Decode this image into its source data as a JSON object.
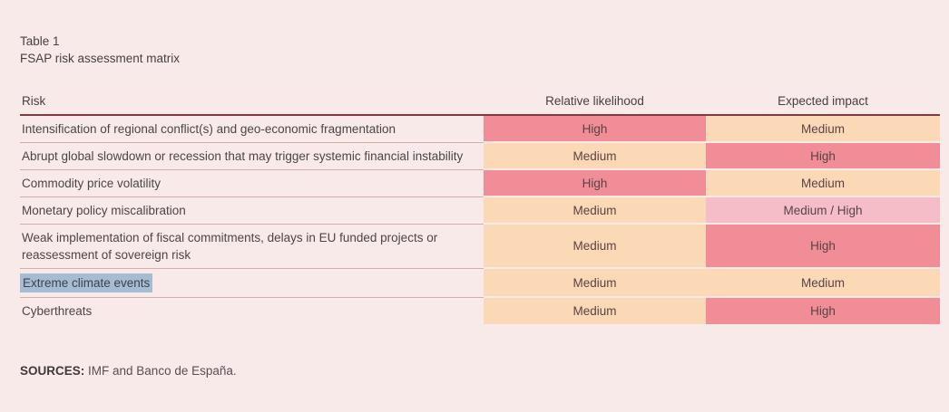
{
  "title": {
    "label": "Table 1",
    "subtitle": "FSAP risk assessment matrix"
  },
  "table": {
    "headers": {
      "risk": "Risk",
      "likelihood": "Relative likelihood",
      "impact": "Expected impact"
    },
    "rows": [
      {
        "risk": "Intensification of regional conflict(s) and geo-economic fragmentation",
        "likelihood": {
          "label": "High",
          "level": "high"
        },
        "impact": {
          "label": "Medium",
          "level": "medium"
        },
        "highlighted": false
      },
      {
        "risk": "Abrupt global slowdown or recession that may trigger systemic financial instability",
        "likelihood": {
          "label": "Medium",
          "level": "medium"
        },
        "impact": {
          "label": "High",
          "level": "high"
        },
        "highlighted": false
      },
      {
        "risk": "Commodity price volatility",
        "likelihood": {
          "label": "High",
          "level": "high"
        },
        "impact": {
          "label": "Medium",
          "level": "medium"
        },
        "highlighted": false
      },
      {
        "risk": "Monetary policy miscalibration",
        "likelihood": {
          "label": "Medium",
          "level": "medium"
        },
        "impact": {
          "label": "Medium / High",
          "level": "medium_high"
        },
        "highlighted": false
      },
      {
        "risk": "Weak implementation of fiscal commitments, delays in EU funded projects or reassessment of sovereign risk",
        "likelihood": {
          "label": "Medium",
          "level": "medium"
        },
        "impact": {
          "label": "High",
          "level": "high"
        },
        "highlighted": false
      },
      {
        "risk": "Extreme climate events",
        "likelihood": {
          "label": "Medium",
          "level": "medium"
        },
        "impact": {
          "label": "Medium",
          "level": "medium"
        },
        "highlighted": true
      },
      {
        "risk": "Cyberthreats",
        "likelihood": {
          "label": "Medium",
          "level": "medium"
        },
        "impact": {
          "label": "High",
          "level": "high"
        },
        "highlighted": false
      }
    ]
  },
  "footer": {
    "sources_label": "SOURCES:",
    "sources_text": "IMF and Banco de España."
  },
  "colors": {
    "background": "#f7eae9",
    "high": "#f08d96",
    "medium": "#fbd8b6",
    "medium_high": "#f5bdc7",
    "header_line": "#7d3c42",
    "row_separator": "#d5abad",
    "selection_highlight": "#a5bcd2"
  }
}
